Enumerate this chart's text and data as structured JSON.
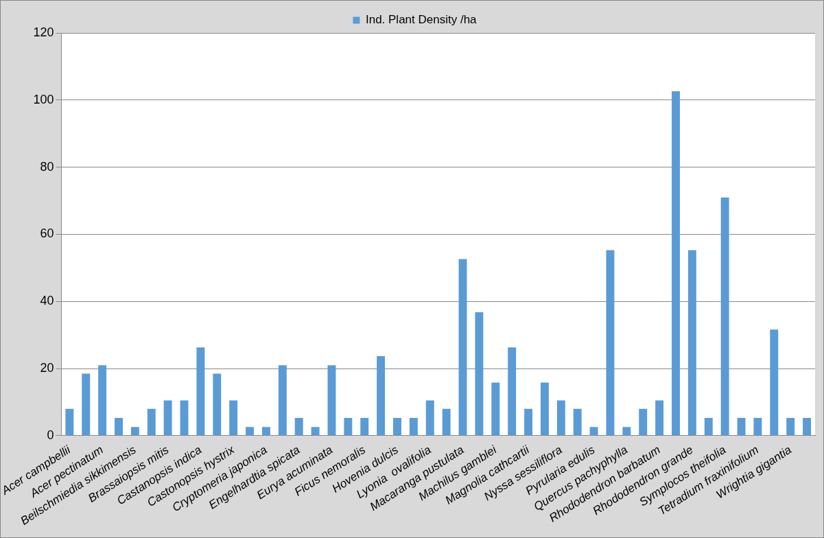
{
  "chart_data": {
    "type": "bar",
    "categories": [
      "Acer campbellii",
      null,
      "Acer pectinatum",
      null,
      "Beilschmiedia sikkimensis",
      null,
      "Brassaiopsis mitis",
      null,
      "Castanopsis indica",
      null,
      "Castonopsis hystrix",
      null,
      "Cryptomeria japonica",
      null,
      "Engelhardtia spicata",
      null,
      "Eurya acuminata",
      null,
      "Ficus nemoralis",
      null,
      "Hovenia dulcis",
      null,
      "Lyonia  ovalifolia",
      null,
      "Macaranga pustulata",
      null,
      "Machilus gamblei",
      null,
      "Magnolia cathcartii",
      null,
      "Nyssa sessiliflora",
      null,
      "Pyrularia edulis",
      null,
      "Quercus pachyphylla",
      null,
      "Rhododendron barbatum",
      null,
      "Rhododendron grande",
      null,
      "Symplocos theifolia",
      null,
      "Tetradium fraxinifolium",
      null,
      "Wrightia gigantia",
      null
    ],
    "series": [
      {
        "name": "Ind. Plant Density /ha",
        "color": "#5b9bd5",
        "values": [
          8,
          18.5,
          21,
          5.3,
          2.6,
          8,
          10.5,
          10.5,
          26.3,
          18.5,
          10.5,
          2.6,
          2.6,
          21,
          5.3,
          2.6,
          21,
          5.3,
          5.3,
          23.7,
          5.3,
          5.3,
          10.5,
          8,
          52.6,
          36.8,
          15.8,
          26.3,
          8,
          15.8,
          10.5,
          8,
          2.6,
          55.3,
          2.6,
          8,
          10.5,
          102.6,
          55.3,
          5.3,
          71,
          5.3,
          5.3,
          31.6,
          5.3,
          5.3
        ]
      }
    ],
    "ylim": [
      0,
      120
    ],
    "yticks": [
      0,
      20,
      40,
      60,
      80,
      100,
      120
    ],
    "grid": "y",
    "legend": "top"
  }
}
